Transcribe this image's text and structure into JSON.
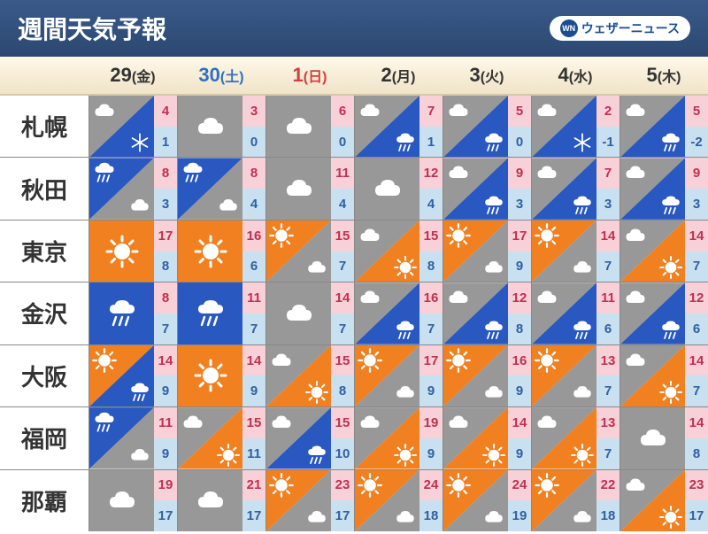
{
  "header": {
    "title": "週間天気予報",
    "logo_badge": "WN",
    "logo_text": "ウェザーニュース"
  },
  "colors": {
    "header_bg_top": "#3a5a8a",
    "header_bg_bottom": "#2c4870",
    "date_bg_top": "#fff8e8",
    "date_bg_bottom": "#f0e4c8",
    "sunny": "#f08020",
    "cloudy": "#989898",
    "rain": "#2858c0",
    "temp_hi_bg": "#f8d0d8",
    "temp_hi_fg": "#c03050",
    "temp_lo_bg": "#c8e0f0",
    "temp_lo_fg": "#3060a0",
    "border": "#888888"
  },
  "dates": [
    {
      "day": "29",
      "dow": "(金)",
      "color": "black"
    },
    {
      "day": "30",
      "dow": "(土)",
      "color": "sat"
    },
    {
      "day": "1",
      "dow": "(日)",
      "color": "sun"
    },
    {
      "day": "2",
      "dow": "(月)",
      "color": "black"
    },
    {
      "day": "3",
      "dow": "(火)",
      "color": "black"
    },
    {
      "day": "4",
      "dow": "(水)",
      "color": "black"
    },
    {
      "day": "5",
      "dow": "(木)",
      "color": "black"
    }
  ],
  "cities": [
    {
      "name": "札幌",
      "days": [
        {
          "w1": "cloudy",
          "w2": "snow",
          "hi": 4,
          "lo": 1
        },
        {
          "w1": "cloudy",
          "hi": 3,
          "lo": 0
        },
        {
          "w1": "cloudy",
          "hi": 6,
          "lo": 0
        },
        {
          "w1": "cloudy",
          "w2": "rain",
          "hi": 7,
          "lo": 1
        },
        {
          "w1": "cloudy",
          "w2": "rain",
          "hi": 5,
          "lo": 0
        },
        {
          "w1": "cloudy",
          "w2": "snow",
          "hi": 2,
          "lo": -1
        },
        {
          "w1": "cloudy",
          "w2": "rain",
          "hi": 5,
          "lo": -2
        }
      ]
    },
    {
      "name": "秋田",
      "days": [
        {
          "w1": "rain",
          "w2": "cloudy",
          "hi": 8,
          "lo": 3
        },
        {
          "w1": "rain",
          "w2": "cloudy",
          "hi": 8,
          "lo": 4
        },
        {
          "w1": "cloudy",
          "hi": 11,
          "lo": 4
        },
        {
          "w1": "cloudy",
          "hi": 12,
          "lo": 4
        },
        {
          "w1": "cloudy",
          "w2": "rain",
          "hi": 9,
          "lo": 3
        },
        {
          "w1": "cloudy",
          "w2": "rain",
          "hi": 7,
          "lo": 3
        },
        {
          "w1": "cloudy",
          "w2": "rain",
          "hi": 9,
          "lo": 3
        }
      ]
    },
    {
      "name": "東京",
      "days": [
        {
          "w1": "sunny",
          "hi": 17,
          "lo": 8
        },
        {
          "w1": "sunny",
          "hi": 16,
          "lo": 6
        },
        {
          "w1": "sunny",
          "w2": "cloudy",
          "hi": 15,
          "lo": 7
        },
        {
          "w1": "cloudy",
          "w2": "sunny",
          "hi": 15,
          "lo": 8
        },
        {
          "w1": "sunny",
          "w2": "cloudy",
          "hi": 17,
          "lo": 9
        },
        {
          "w1": "sunny",
          "w2": "cloudy",
          "hi": 14,
          "lo": 7
        },
        {
          "w1": "cloudy",
          "w2": "sunny",
          "hi": 14,
          "lo": 7
        }
      ]
    },
    {
      "name": "金沢",
      "days": [
        {
          "w1": "rain",
          "hi": 8,
          "lo": 7
        },
        {
          "w1": "rain",
          "hi": 11,
          "lo": 7
        },
        {
          "w1": "cloudy",
          "hi": 14,
          "lo": 7
        },
        {
          "w1": "cloudy",
          "w2": "rain",
          "hi": 16,
          "lo": 7
        },
        {
          "w1": "cloudy",
          "w2": "rain",
          "hi": 12,
          "lo": 8
        },
        {
          "w1": "cloudy",
          "w2": "rain",
          "hi": 11,
          "lo": 6
        },
        {
          "w1": "cloudy",
          "w2": "rain",
          "hi": 12,
          "lo": 6
        }
      ]
    },
    {
      "name": "大阪",
      "days": [
        {
          "w1": "sunny",
          "w2": "rain",
          "hi": 14,
          "lo": 9
        },
        {
          "w1": "sunny",
          "hi": 14,
          "lo": 9
        },
        {
          "w1": "cloudy",
          "w2": "sunny",
          "hi": 15,
          "lo": 8
        },
        {
          "w1": "sunny",
          "w2": "cloudy",
          "hi": 17,
          "lo": 9
        },
        {
          "w1": "sunny",
          "w2": "cloudy",
          "hi": 16,
          "lo": 9
        },
        {
          "w1": "sunny",
          "w2": "cloudy",
          "hi": 13,
          "lo": 7
        },
        {
          "w1": "cloudy",
          "w2": "sunny",
          "hi": 14,
          "lo": 7
        }
      ]
    },
    {
      "name": "福岡",
      "days": [
        {
          "w1": "rain",
          "w2": "cloudy",
          "hi": 11,
          "lo": 9
        },
        {
          "w1": "cloudy",
          "w2": "sunny",
          "hi": 15,
          "lo": 11
        },
        {
          "w1": "cloudy",
          "w2": "rain",
          "hi": 15,
          "lo": 10
        },
        {
          "w1": "cloudy",
          "w2": "sunny",
          "hi": 19,
          "lo": 9
        },
        {
          "w1": "cloudy",
          "w2": "sunny",
          "hi": 14,
          "lo": 9
        },
        {
          "w1": "cloudy",
          "w2": "sunny",
          "hi": 13,
          "lo": 7
        },
        {
          "w1": "cloudy",
          "hi": 14,
          "lo": 8
        }
      ]
    },
    {
      "name": "那覇",
      "days": [
        {
          "w1": "cloudy",
          "hi": 19,
          "lo": 17
        },
        {
          "w1": "cloudy",
          "hi": 21,
          "lo": 17
        },
        {
          "w1": "sunny",
          "w2": "cloudy",
          "hi": 23,
          "lo": 17
        },
        {
          "w1": "sunny",
          "w2": "cloudy",
          "hi": 24,
          "lo": 18
        },
        {
          "w1": "sunny",
          "w2": "cloudy",
          "hi": 24,
          "lo": 19
        },
        {
          "w1": "sunny",
          "w2": "cloudy",
          "hi": 22,
          "lo": 18
        },
        {
          "w1": "cloudy",
          "w2": "sunny",
          "hi": 23,
          "lo": 17
        }
      ]
    }
  ]
}
